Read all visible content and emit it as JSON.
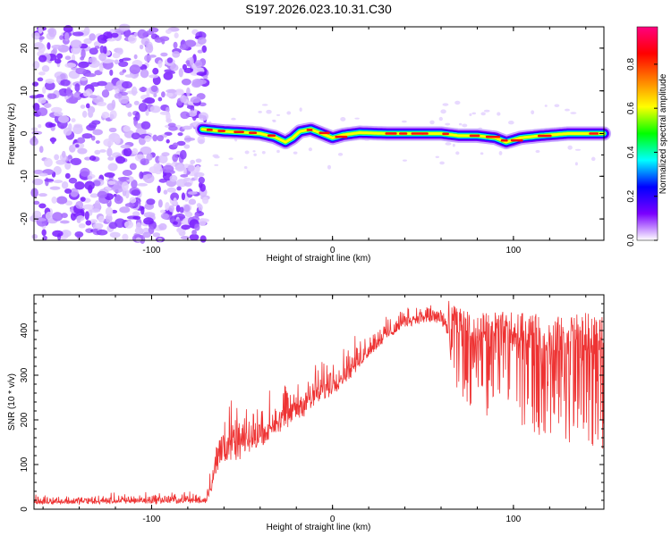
{
  "figure": {
    "title": "S197.2026.023.10.31.C30"
  },
  "chart_data": [
    {
      "type": "heatmap",
      "title": "",
      "xlabel": "Height of straight line (km)",
      "ylabel": "Frequency (Hz)",
      "xlim": [
        -165,
        150
      ],
      "ylim": [
        -25,
        25
      ],
      "xticks": [
        -100,
        0,
        100
      ],
      "xtick_labels": [
        "-100",
        "0",
        "100"
      ],
      "yticks": [
        -20,
        -10,
        0,
        10,
        20
      ],
      "ytick_labels": [
        "-20",
        "-10",
        "0",
        "10",
        "20"
      ],
      "noise_region_x": [
        -165,
        -70
      ],
      "ridge": {
        "description": "narrow high-amplitude band near 0 Hz",
        "x": [
          -72,
          -60,
          -50,
          -40,
          -32,
          -26,
          -22,
          -18,
          -12,
          -6,
          0,
          6,
          15,
          30,
          45,
          60,
          70,
          80,
          90,
          96,
          104,
          115,
          130,
          150
        ],
        "y": [
          1.0,
          0.5,
          0.3,
          0.0,
          -0.8,
          -2.0,
          -1.0,
          0.5,
          1.0,
          0.0,
          -1.0,
          -0.3,
          0.2,
          0.0,
          0.0,
          0.0,
          -0.5,
          -0.5,
          -1.0,
          -2.0,
          -1.0,
          -0.5,
          0.0,
          0.0
        ]
      },
      "colorbar": {
        "label": "Normalized spectral amplitude",
        "range": [
          0.0,
          0.97
        ],
        "ticks": [
          0.0,
          0.2,
          0.4,
          0.6,
          0.8
        ],
        "tick_labels": [
          "0.0",
          "0.2",
          "0.4",
          "0.6",
          "0.8"
        ],
        "colors": [
          "#ffffff",
          "#7a00ff",
          "#0000ff",
          "#00ffff",
          "#00ff00",
          "#ffff00",
          "#ff8000",
          "#ff0000",
          "#ff0080"
        ]
      }
    },
    {
      "type": "line",
      "title": "",
      "xlabel": "Height of straight line (km)",
      "ylabel": "SNR (10 * v/v)",
      "xlim": [
        -165,
        150
      ],
      "ylim": [
        0,
        480
      ],
      "xticks": [
        -100,
        0,
        100
      ],
      "xtick_labels": [
        "-100",
        "0",
        "100"
      ],
      "yticks": [
        0,
        100,
        200,
        300,
        400
      ],
      "ytick_labels": [
        "0",
        "100",
        "200",
        "300",
        "400"
      ],
      "color": "#ee3333",
      "series": [
        {
          "name": "SNR",
          "envelope": {
            "x": [
              -165,
              -70,
              -60,
              -50,
              -40,
              -30,
              -20,
              -10,
              0,
              10,
              20,
              30,
              40,
              50,
              60,
              70,
              80,
              90,
              100,
              110,
              120,
              130,
              140,
              150
            ],
            "lower": [
              5,
              5,
              60,
              80,
              110,
              140,
              170,
              200,
              230,
              270,
              320,
              360,
              395,
              405,
              395,
              250,
              220,
              200,
              190,
              170,
              160,
              150,
              140,
              130
            ],
            "upper": [
              30,
              40,
              250,
              220,
              240,
              270,
              290,
              320,
              340,
              370,
              400,
              430,
              450,
              460,
              470,
              450,
              440,
              445,
              440,
              440,
              430,
              435,
              440,
              430
            ]
          }
        }
      ]
    }
  ]
}
